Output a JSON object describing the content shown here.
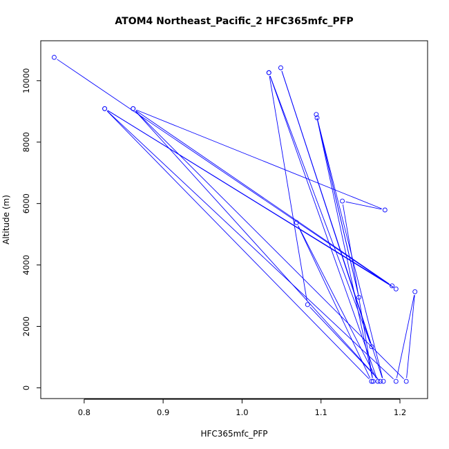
{
  "chart_data": {
    "type": "line",
    "title": "ATOM4 Northeast_Pacific_2 HFC365mfc_PFP",
    "xlabel": "HFC365mfc_PFP",
    "ylabel": "Altitude (m)",
    "xlim": [
      0.745,
      1.235
    ],
    "ylim": [
      -350,
      11300
    ],
    "xticks": [
      0.8,
      0.9,
      1.0,
      1.1,
      1.2
    ],
    "xtick_labels": [
      "0.8",
      "0.9",
      "1.0",
      "1.1",
      "1.2"
    ],
    "yticks": [
      0,
      2000,
      4000,
      6000,
      8000,
      10000
    ],
    "ytick_labels": [
      "0",
      "2000",
      "4000",
      "6000",
      "8000",
      "10000"
    ],
    "grid": false,
    "colors": {
      "series": "#0000ff",
      "axes": "#000000"
    },
    "series": [
      {
        "marker": "open-circle",
        "points": [
          {
            "x": 0.762,
            "y": 10760
          },
          {
            "x": 1.195,
            "y": 3220
          },
          {
            "x": 0.826,
            "y": 9090
          },
          {
            "x": 1.19,
            "y": 3320
          },
          {
            "x": 0.862,
            "y": 9090
          },
          {
            "x": 1.181,
            "y": 5790
          },
          {
            "x": 1.127,
            "y": 6080
          },
          {
            "x": 1.166,
            "y": 210
          },
          {
            "x": 1.094,
            "y": 8900
          },
          {
            "x": 1.148,
            "y": 2950
          },
          {
            "x": 1.095,
            "y": 8790
          },
          {
            "x": 1.179,
            "y": 210
          },
          {
            "x": 1.049,
            "y": 10420
          },
          {
            "x": 1.164,
            "y": 1340
          },
          {
            "x": 1.034,
            "y": 10260
          },
          {
            "x": 1.172,
            "y": 210
          },
          {
            "x": 1.069,
            "y": 5380
          },
          {
            "x": 1.164,
            "y": 210
          },
          {
            "x": 0.826,
            "y": 9090
          },
          {
            "x": 1.195,
            "y": 210
          },
          {
            "x": 1.219,
            "y": 3130
          },
          {
            "x": 1.208,
            "y": 210
          },
          {
            "x": 0.862,
            "y": 9090
          },
          {
            "x": 1.175,
            "y": 210
          },
          {
            "x": 1.083,
            "y": 2710
          },
          {
            "x": 1.034,
            "y": 10260
          }
        ]
      }
    ]
  }
}
